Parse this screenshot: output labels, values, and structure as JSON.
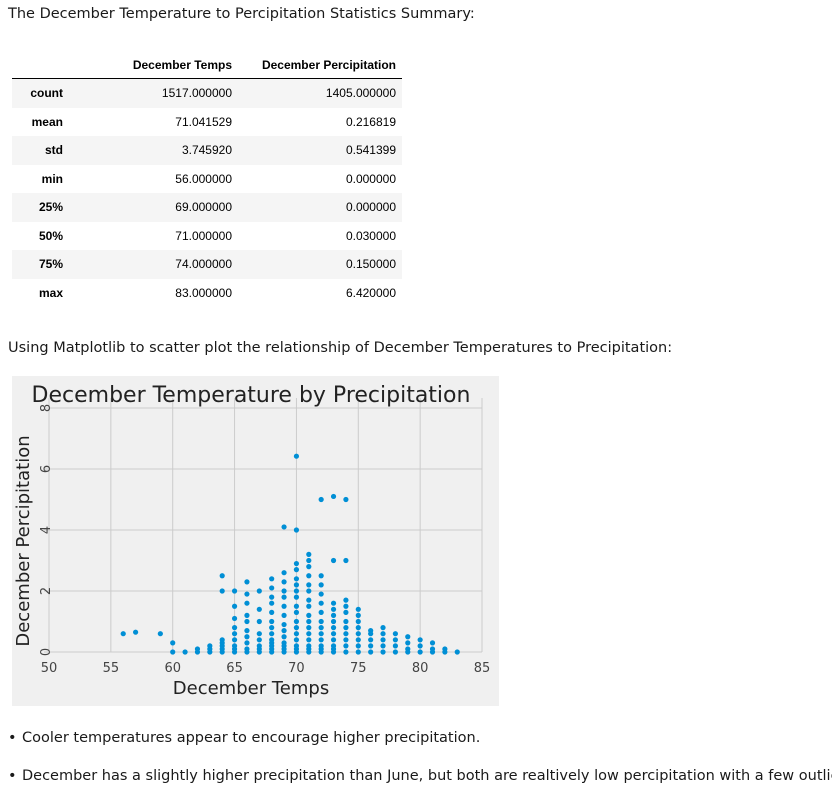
{
  "intro_text": "The December Temperature to Percipitation Statistics Summary:",
  "stats_table": {
    "columns": [
      "December Temps",
      "December Percipitation"
    ],
    "rows": [
      {
        "label": "count",
        "temps": "1517.000000",
        "prcp": "1405.000000"
      },
      {
        "label": "mean",
        "temps": "71.041529",
        "prcp": "0.216819"
      },
      {
        "label": "std",
        "temps": "3.745920",
        "prcp": "0.541399"
      },
      {
        "label": "min",
        "temps": "56.000000",
        "prcp": "0.000000"
      },
      {
        "label": "25%",
        "temps": "69.000000",
        "prcp": "0.000000"
      },
      {
        "label": "50%",
        "temps": "71.000000",
        "prcp": "0.030000"
      },
      {
        "label": "75%",
        "temps": "74.000000",
        "prcp": "0.150000"
      },
      {
        "label": "max",
        "temps": "83.000000",
        "prcp": "6.420000"
      }
    ]
  },
  "scatter_intro_text": "Using Matplotlib to scatter plot the relationship of December Temperatures to Precipitation:",
  "chart_data": {
    "type": "scatter",
    "title": "December Temperature by Precipitation",
    "xlabel": "December Temps",
    "ylabel": "December Percipitation",
    "xlim": [
      50,
      85
    ],
    "ylim": [
      0,
      8
    ],
    "xticks": [
      50,
      55,
      60,
      65,
      70,
      75,
      80,
      85
    ],
    "yticks": [
      0,
      2,
      4,
      6,
      8
    ],
    "grid": true,
    "style": "fivethirtyeight",
    "point_color": "#008fd5",
    "points": [
      [
        56,
        0.6
      ],
      [
        57,
        0.65
      ],
      [
        59,
        0.6
      ],
      [
        60,
        0.3
      ],
      [
        60,
        0.0
      ],
      [
        61,
        0.0
      ],
      [
        62,
        0.0
      ],
      [
        62,
        0.1
      ],
      [
        63,
        0.0
      ],
      [
        63,
        0.1
      ],
      [
        63,
        0.2
      ],
      [
        64,
        2.5
      ],
      [
        64,
        2.0
      ],
      [
        64,
        0.0
      ],
      [
        64,
        0.1
      ],
      [
        64,
        0.2
      ],
      [
        64,
        0.3
      ],
      [
        64,
        0.4
      ],
      [
        65,
        2.0
      ],
      [
        65,
        1.5
      ],
      [
        65,
        1.1
      ],
      [
        65,
        0.8
      ],
      [
        65,
        0.6
      ],
      [
        65,
        0.4
      ],
      [
        65,
        0.2
      ],
      [
        65,
        0.1
      ],
      [
        65,
        0.0
      ],
      [
        66,
        2.3
      ],
      [
        66,
        1.9
      ],
      [
        66,
        1.6
      ],
      [
        66,
        1.2
      ],
      [
        66,
        1.0
      ],
      [
        66,
        0.7
      ],
      [
        66,
        0.5
      ],
      [
        66,
        0.3
      ],
      [
        66,
        0.1
      ],
      [
        66,
        0.0
      ],
      [
        67,
        2.0
      ],
      [
        67,
        1.4
      ],
      [
        67,
        1.0
      ],
      [
        67,
        0.6
      ],
      [
        67,
        0.4
      ],
      [
        67,
        0.2
      ],
      [
        67,
        0.1
      ],
      [
        67,
        0.0
      ],
      [
        68,
        2.4
      ],
      [
        68,
        2.1
      ],
      [
        68,
        1.8
      ],
      [
        68,
        1.6
      ],
      [
        68,
        1.3
      ],
      [
        68,
        1.0
      ],
      [
        68,
        0.8
      ],
      [
        68,
        0.6
      ],
      [
        68,
        0.4
      ],
      [
        68,
        0.3
      ],
      [
        68,
        0.2
      ],
      [
        68,
        0.1
      ],
      [
        68,
        0.0
      ],
      [
        69,
        4.1
      ],
      [
        69,
        2.6
      ],
      [
        69,
        2.3
      ],
      [
        69,
        2.0
      ],
      [
        69,
        1.8
      ],
      [
        69,
        1.5
      ],
      [
        69,
        1.2
      ],
      [
        69,
        0.9
      ],
      [
        69,
        0.7
      ],
      [
        69,
        0.5
      ],
      [
        69,
        0.3
      ],
      [
        69,
        0.2
      ],
      [
        69,
        0.1
      ],
      [
        69,
        0.0
      ],
      [
        70,
        4.0
      ],
      [
        70,
        6.42
      ],
      [
        70,
        2.9
      ],
      [
        70,
        2.7
      ],
      [
        70,
        2.4
      ],
      [
        70,
        2.2
      ],
      [
        70,
        2.0
      ],
      [
        70,
        1.8
      ],
      [
        70,
        1.5
      ],
      [
        70,
        1.3
      ],
      [
        70,
        1.0
      ],
      [
        70,
        0.8
      ],
      [
        70,
        0.6
      ],
      [
        70,
        0.4
      ],
      [
        70,
        0.2
      ],
      [
        70,
        0.1
      ],
      [
        70,
        0.0
      ],
      [
        71,
        3.2
      ],
      [
        71,
        3.0
      ],
      [
        71,
        2.8
      ],
      [
        71,
        2.5
      ],
      [
        71,
        2.2
      ],
      [
        71,
        2.0
      ],
      [
        71,
        1.7
      ],
      [
        71,
        1.5
      ],
      [
        71,
        1.2
      ],
      [
        71,
        1.0
      ],
      [
        71,
        0.8
      ],
      [
        71,
        0.6
      ],
      [
        71,
        0.4
      ],
      [
        71,
        0.2
      ],
      [
        71,
        0.1
      ],
      [
        71,
        0.0
      ],
      [
        72,
        5.0
      ],
      [
        72,
        2.5
      ],
      [
        72,
        2.2
      ],
      [
        72,
        1.9
      ],
      [
        72,
        1.6
      ],
      [
        72,
        1.3
      ],
      [
        72,
        1.0
      ],
      [
        72,
        0.8
      ],
      [
        72,
        0.6
      ],
      [
        72,
        0.4
      ],
      [
        72,
        0.2
      ],
      [
        72,
        0.1
      ],
      [
        72,
        0.0
      ],
      [
        73,
        5.1
      ],
      [
        73,
        3.0
      ],
      [
        73,
        1.6
      ],
      [
        73,
        1.4
      ],
      [
        73,
        1.2
      ],
      [
        73,
        1.0
      ],
      [
        73,
        0.8
      ],
      [
        73,
        0.6
      ],
      [
        73,
        0.4
      ],
      [
        73,
        0.2
      ],
      [
        73,
        0.1
      ],
      [
        73,
        0.0
      ],
      [
        74,
        5.0
      ],
      [
        74,
        3.0
      ],
      [
        74,
        1.7
      ],
      [
        74,
        1.5
      ],
      [
        74,
        1.3
      ],
      [
        74,
        1.0
      ],
      [
        74,
        0.8
      ],
      [
        74,
        0.6
      ],
      [
        74,
        0.4
      ],
      [
        74,
        0.2
      ],
      [
        74,
        0.0
      ],
      [
        75,
        1.4
      ],
      [
        75,
        1.2
      ],
      [
        75,
        1.0
      ],
      [
        75,
        0.8
      ],
      [
        75,
        0.6
      ],
      [
        75,
        0.4
      ],
      [
        75,
        0.2
      ],
      [
        75,
        0.0
      ],
      [
        76,
        0.7
      ],
      [
        76,
        0.6
      ],
      [
        76,
        0.4
      ],
      [
        76,
        0.2
      ],
      [
        76,
        0.0
      ],
      [
        77,
        0.8
      ],
      [
        77,
        0.6
      ],
      [
        77,
        0.4
      ],
      [
        77,
        0.2
      ],
      [
        77,
        0.0
      ],
      [
        78,
        0.6
      ],
      [
        78,
        0.4
      ],
      [
        78,
        0.2
      ],
      [
        78,
        0.0
      ],
      [
        79,
        0.5
      ],
      [
        79,
        0.3
      ],
      [
        79,
        0.1
      ],
      [
        79,
        0.0
      ],
      [
        80,
        0.4
      ],
      [
        80,
        0.2
      ],
      [
        80,
        0.0
      ],
      [
        81,
        0.3
      ],
      [
        81,
        0.1
      ],
      [
        81,
        0.0
      ],
      [
        82,
        0.1
      ],
      [
        82,
        0.0
      ],
      [
        83,
        0.0
      ]
    ]
  },
  "bullets": [
    "Cooler temperatures appear to encourage higher precipitation.",
    "December has a slightly higher precipitation than June, but both are realtively low percipitation with a few outliers."
  ]
}
